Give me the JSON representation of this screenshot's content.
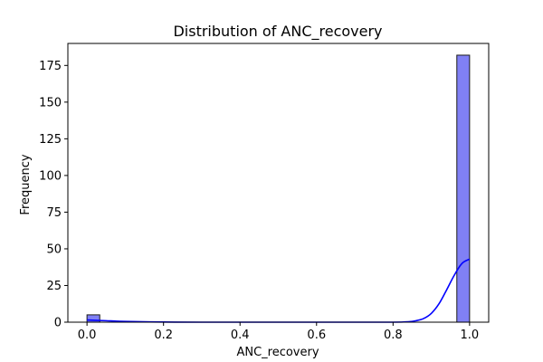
{
  "chart_data": {
    "type": "bar",
    "title": "Distribution of ANC_recovery",
    "xlabel": "ANC_recovery",
    "ylabel": "Frequency",
    "xlim": [
      -0.05,
      1.05
    ],
    "ylim": [
      0,
      190
    ],
    "xticks": [
      0.0,
      0.2,
      0.4,
      0.6,
      0.8,
      1.0
    ],
    "xtick_labels": [
      "0.0",
      "0.2",
      "0.4",
      "0.6",
      "0.8",
      "1.0"
    ],
    "yticks": [
      0,
      25,
      50,
      75,
      100,
      125,
      150,
      175
    ],
    "ytick_labels": [
      "0",
      "25",
      "50",
      "75",
      "100",
      "125",
      "150",
      "175"
    ],
    "bars": [
      {
        "x0": 0.0,
        "x1": 0.0333,
        "count": 5
      },
      {
        "x0": 0.9667,
        "x1": 1.0,
        "count": 182
      }
    ],
    "kde": {
      "x": [
        0.0,
        0.02,
        0.05,
        0.1,
        0.2,
        0.3,
        0.5,
        0.7,
        0.8,
        0.84,
        0.86,
        0.88,
        0.9,
        0.92,
        0.94,
        0.96,
        0.98,
        1.0
      ],
      "y": [
        1.5,
        1.3,
        1.0,
        0.5,
        0.1,
        0.0,
        0.0,
        0.0,
        0.0,
        0.3,
        1.0,
        2.5,
        6.0,
        12.5,
        22.0,
        32.0,
        40.0,
        43.0
      ]
    },
    "grid": false,
    "legend": "none",
    "colors": {
      "bar_fill": "#8080f5",
      "bar_edge": "#1a1a1a",
      "kde_line": "#0000ff"
    }
  }
}
